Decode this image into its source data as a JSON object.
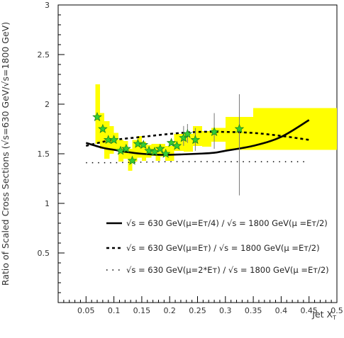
{
  "chart_data": {
    "type": "scatter",
    "title": "",
    "xlabel": "Jet X",
    "xlabel_sub": "T",
    "ylabel": "Ratio of Scaled Cross Sections (√s=630 GeV/√s=1800 GeV)",
    "xlim": [
      0,
      0.5
    ],
    "ylim": [
      0,
      3
    ],
    "x_ticks": [
      "0.05",
      "0.1",
      "0.15",
      "0.2",
      "0.25",
      "0.3",
      "0.35",
      "0.4",
      "0.45",
      "0.5"
    ],
    "y_ticks": [
      "0.5",
      "1",
      "1.5",
      "2",
      "2.5",
      "3"
    ],
    "colors": {
      "band": "#ffff00",
      "marker": "#33cc33",
      "marker_edge": "#1a7a1a",
      "curve": "#000000",
      "errorbar": "#777777"
    },
    "systematic_band": {
      "color": "#ffff00",
      "bins": [
        {
          "x0": 0.067,
          "x1": 0.075,
          "lo": 1.6,
          "hi": 2.2
        },
        {
          "x0": 0.075,
          "x1": 0.083,
          "lo": 1.55,
          "hi": 1.91
        },
        {
          "x0": 0.083,
          "x1": 0.092,
          "lo": 1.45,
          "hi": 1.83
        },
        {
          "x0": 0.092,
          "x1": 0.1,
          "lo": 1.5,
          "hi": 1.78
        },
        {
          "x0": 0.1,
          "x1": 0.108,
          "lo": 1.53,
          "hi": 1.71
        },
        {
          "x0": 0.108,
          "x1": 0.117,
          "lo": 1.42,
          "hi": 1.64
        },
        {
          "x0": 0.117,
          "x1": 0.125,
          "lo": 1.45,
          "hi": 1.63
        },
        {
          "x0": 0.125,
          "x1": 0.133,
          "lo": 1.33,
          "hi": 1.55
        },
        {
          "x0": 0.133,
          "x1": 0.142,
          "lo": 1.42,
          "hi": 1.64
        },
        {
          "x0": 0.142,
          "x1": 0.15,
          "lo": 1.46,
          "hi": 1.68
        },
        {
          "x0": 0.15,
          "x1": 0.158,
          "lo": 1.43,
          "hi": 1.62
        },
        {
          "x0": 0.158,
          "x1": 0.167,
          "lo": 1.46,
          "hi": 1.59
        },
        {
          "x0": 0.167,
          "x1": 0.175,
          "lo": 1.48,
          "hi": 1.6
        },
        {
          "x0": 0.175,
          "x1": 0.183,
          "lo": 1.43,
          "hi": 1.6
        },
        {
          "x0": 0.183,
          "x1": 0.192,
          "lo": 1.47,
          "hi": 1.6
        },
        {
          "x0": 0.192,
          "x1": 0.208,
          "lo": 1.43,
          "hi": 1.58
        },
        {
          "x0": 0.208,
          "x1": 0.225,
          "lo": 1.53,
          "hi": 1.7
        },
        {
          "x0": 0.225,
          "x1": 0.242,
          "lo": 1.52,
          "hi": 1.7
        },
        {
          "x0": 0.242,
          "x1": 0.258,
          "lo": 1.58,
          "hi": 1.78
        },
        {
          "x0": 0.258,
          "x1": 0.275,
          "lo": 1.57,
          "hi": 1.73
        },
        {
          "x0": 0.275,
          "x1": 0.3,
          "lo": 1.62,
          "hi": 1.76
        },
        {
          "x0": 0.3,
          "x1": 0.35,
          "lo": 1.54,
          "hi": 1.87
        },
        {
          "x0": 0.35,
          "x1": 0.5,
          "lo": 1.54,
          "hi": 1.96
        }
      ]
    },
    "points": [
      {
        "x": 0.07,
        "y": 1.87
      },
      {
        "x": 0.08,
        "y": 1.75
      },
      {
        "x": 0.09,
        "y": 1.64
      },
      {
        "x": 0.1,
        "y": 1.64
      },
      {
        "x": 0.112,
        "y": 1.53
      },
      {
        "x": 0.122,
        "y": 1.55
      },
      {
        "x": 0.133,
        "y": 1.43
      },
      {
        "x": 0.143,
        "y": 1.6
      },
      {
        "x": 0.153,
        "y": 1.59
      },
      {
        "x": 0.163,
        "y": 1.53
      },
      {
        "x": 0.173,
        "y": 1.52
      },
      {
        "x": 0.183,
        "y": 1.55
      },
      {
        "x": 0.193,
        "y": 1.5
      },
      {
        "x": 0.203,
        "y": 1.61
      },
      {
        "x": 0.213,
        "y": 1.58
      },
      {
        "x": 0.225,
        "y": 1.66
      },
      {
        "x": 0.232,
        "y": 1.7
      },
      {
        "x": 0.246,
        "y": 1.64
      },
      {
        "x": 0.28,
        "y": 1.72
      },
      {
        "x": 0.325,
        "y": 1.75
      }
    ],
    "errorbars": [
      {
        "x": 0.225,
        "lo": 1.58,
        "hi": 1.78
      },
      {
        "x": 0.232,
        "lo": 1.61,
        "hi": 1.8
      },
      {
        "x": 0.246,
        "lo": 1.53,
        "hi": 1.76
      },
      {
        "x": 0.28,
        "lo": 1.55,
        "hi": 1.91
      },
      {
        "x": 0.325,
        "lo": 1.08,
        "hi": 2.1
      }
    ],
    "series": [
      {
        "name": "√s = 630 GeV(μ=Eᴛ/4) / √s = 1800 GeV(μ =Eᴛ/2)",
        "style": "solid",
        "x": [
          0.05,
          0.08,
          0.1,
          0.12,
          0.15,
          0.18,
          0.2,
          0.25,
          0.28,
          0.3,
          0.35,
          0.4,
          0.45
        ],
        "y": [
          1.61,
          1.56,
          1.54,
          1.52,
          1.5,
          1.49,
          1.49,
          1.5,
          1.51,
          1.53,
          1.58,
          1.67,
          1.84
        ]
      },
      {
        "name": "√s = 630 GeV(μ=Eᴛ) / √s = 1800 GeV(μ =Eᴛ/2)",
        "style": "dashed",
        "x": [
          0.05,
          0.08,
          0.1,
          0.15,
          0.2,
          0.25,
          0.3,
          0.35,
          0.4,
          0.45
        ],
        "y": [
          1.58,
          1.62,
          1.64,
          1.67,
          1.7,
          1.72,
          1.72,
          1.71,
          1.68,
          1.64
        ]
      },
      {
        "name": "√s = 630 GeV(μ=2*Eᴛ) / √s = 1800 GeV(μ =Eᴛ/2)",
        "style": "dotted",
        "x": [
          0.05,
          0.1,
          0.2,
          0.3,
          0.4,
          0.45
        ],
        "y": [
          1.41,
          1.41,
          1.42,
          1.42,
          1.42,
          1.42
        ]
      }
    ],
    "legend_placement": "lower-right",
    "grid": false
  }
}
